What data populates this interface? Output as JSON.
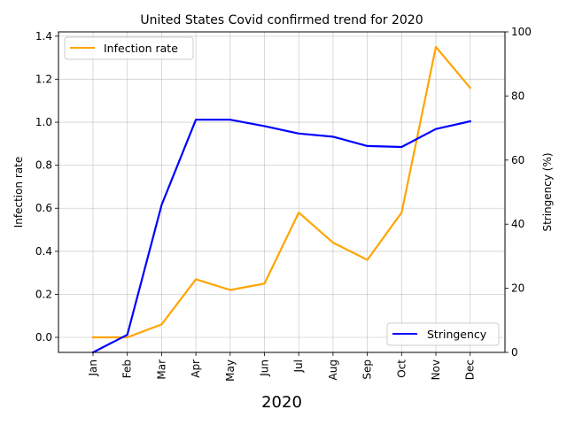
{
  "chart_data": {
    "type": "line",
    "title": "United States Covid confirmed trend for 2020",
    "xlabel": "2020",
    "categories": [
      "Jan",
      "Feb",
      "Mar",
      "Apr",
      "May",
      "Jun",
      "Jul",
      "Aug",
      "Sep",
      "Oct",
      "Nov",
      "Dec"
    ],
    "grid": true,
    "left_axis": {
      "label": "Infection rate",
      "ylim": [
        -0.07,
        1.42
      ],
      "ticks": [
        "0.0",
        "0.2",
        "0.4",
        "0.6",
        "0.8",
        "1.0",
        "1.2",
        "1.4"
      ],
      "tick_values": [
        0,
        0.2,
        0.4,
        0.6,
        0.8,
        1.0,
        1.2,
        1.4
      ]
    },
    "right_axis": {
      "label": "Stringency (%)",
      "ylim": [
        0,
        100
      ],
      "ticks": [
        "0",
        "20",
        "40",
        "60",
        "80",
        "100"
      ],
      "tick_values": [
        0,
        20,
        40,
        60,
        80,
        100
      ]
    },
    "series": [
      {
        "name": "Infection rate",
        "axis": "left",
        "color": "#FFA500",
        "legend_position": "top-left",
        "values": [
          0.0,
          0.0,
          0.06,
          0.27,
          0.22,
          0.25,
          0.58,
          0.44,
          0.36,
          0.58,
          1.35,
          1.16
        ]
      },
      {
        "name": "Stringency",
        "axis": "right",
        "color": "#0000FF",
        "legend_position": "bottom-right",
        "values": [
          0.0,
          5.5,
          46.0,
          72.6,
          72.6,
          70.6,
          68.3,
          67.3,
          64.4,
          64.1,
          69.7,
          72.1
        ]
      }
    ]
  }
}
